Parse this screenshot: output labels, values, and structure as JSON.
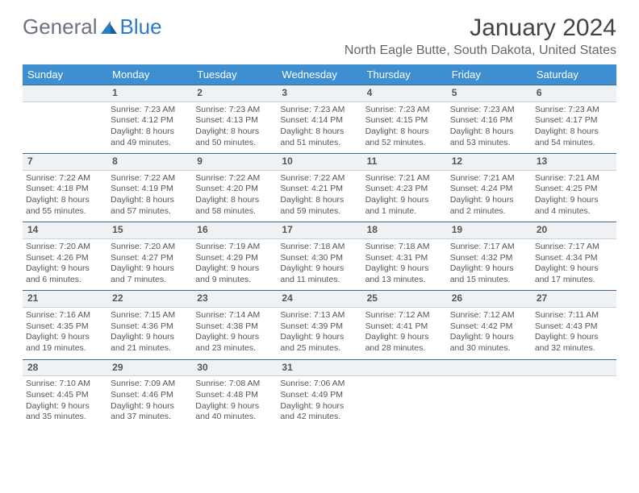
{
  "logo": {
    "text1": "General",
    "text2": "Blue"
  },
  "title": "January 2024",
  "location": "North Eagle Butte, South Dakota, United States",
  "dayHeaders": [
    "Sunday",
    "Monday",
    "Tuesday",
    "Wednesday",
    "Thursday",
    "Friday",
    "Saturday"
  ],
  "colors": {
    "headerBg": "#3d8fd1",
    "headerText": "#ffffff",
    "dayNumBg": "#eef2f5",
    "dayNumBorderTop": "#3d6a90",
    "logoGray": "#6b7280",
    "logoBlue": "#2b7cc4"
  },
  "weeks": [
    {
      "nums": [
        "",
        "1",
        "2",
        "3",
        "4",
        "5",
        "6"
      ],
      "cells": [
        null,
        {
          "sunrise": "Sunrise: 7:23 AM",
          "sunset": "Sunset: 4:12 PM",
          "day1": "Daylight: 8 hours",
          "day2": "and 49 minutes."
        },
        {
          "sunrise": "Sunrise: 7:23 AM",
          "sunset": "Sunset: 4:13 PM",
          "day1": "Daylight: 8 hours",
          "day2": "and 50 minutes."
        },
        {
          "sunrise": "Sunrise: 7:23 AM",
          "sunset": "Sunset: 4:14 PM",
          "day1": "Daylight: 8 hours",
          "day2": "and 51 minutes."
        },
        {
          "sunrise": "Sunrise: 7:23 AM",
          "sunset": "Sunset: 4:15 PM",
          "day1": "Daylight: 8 hours",
          "day2": "and 52 minutes."
        },
        {
          "sunrise": "Sunrise: 7:23 AM",
          "sunset": "Sunset: 4:16 PM",
          "day1": "Daylight: 8 hours",
          "day2": "and 53 minutes."
        },
        {
          "sunrise": "Sunrise: 7:23 AM",
          "sunset": "Sunset: 4:17 PM",
          "day1": "Daylight: 8 hours",
          "day2": "and 54 minutes."
        }
      ]
    },
    {
      "nums": [
        "7",
        "8",
        "9",
        "10",
        "11",
        "12",
        "13"
      ],
      "cells": [
        {
          "sunrise": "Sunrise: 7:22 AM",
          "sunset": "Sunset: 4:18 PM",
          "day1": "Daylight: 8 hours",
          "day2": "and 55 minutes."
        },
        {
          "sunrise": "Sunrise: 7:22 AM",
          "sunset": "Sunset: 4:19 PM",
          "day1": "Daylight: 8 hours",
          "day2": "and 57 minutes."
        },
        {
          "sunrise": "Sunrise: 7:22 AM",
          "sunset": "Sunset: 4:20 PM",
          "day1": "Daylight: 8 hours",
          "day2": "and 58 minutes."
        },
        {
          "sunrise": "Sunrise: 7:22 AM",
          "sunset": "Sunset: 4:21 PM",
          "day1": "Daylight: 8 hours",
          "day2": "and 59 minutes."
        },
        {
          "sunrise": "Sunrise: 7:21 AM",
          "sunset": "Sunset: 4:23 PM",
          "day1": "Daylight: 9 hours",
          "day2": "and 1 minute."
        },
        {
          "sunrise": "Sunrise: 7:21 AM",
          "sunset": "Sunset: 4:24 PM",
          "day1": "Daylight: 9 hours",
          "day2": "and 2 minutes."
        },
        {
          "sunrise": "Sunrise: 7:21 AM",
          "sunset": "Sunset: 4:25 PM",
          "day1": "Daylight: 9 hours",
          "day2": "and 4 minutes."
        }
      ]
    },
    {
      "nums": [
        "14",
        "15",
        "16",
        "17",
        "18",
        "19",
        "20"
      ],
      "cells": [
        {
          "sunrise": "Sunrise: 7:20 AM",
          "sunset": "Sunset: 4:26 PM",
          "day1": "Daylight: 9 hours",
          "day2": "and 6 minutes."
        },
        {
          "sunrise": "Sunrise: 7:20 AM",
          "sunset": "Sunset: 4:27 PM",
          "day1": "Daylight: 9 hours",
          "day2": "and 7 minutes."
        },
        {
          "sunrise": "Sunrise: 7:19 AM",
          "sunset": "Sunset: 4:29 PM",
          "day1": "Daylight: 9 hours",
          "day2": "and 9 minutes."
        },
        {
          "sunrise": "Sunrise: 7:18 AM",
          "sunset": "Sunset: 4:30 PM",
          "day1": "Daylight: 9 hours",
          "day2": "and 11 minutes."
        },
        {
          "sunrise": "Sunrise: 7:18 AM",
          "sunset": "Sunset: 4:31 PM",
          "day1": "Daylight: 9 hours",
          "day2": "and 13 minutes."
        },
        {
          "sunrise": "Sunrise: 7:17 AM",
          "sunset": "Sunset: 4:32 PM",
          "day1": "Daylight: 9 hours",
          "day2": "and 15 minutes."
        },
        {
          "sunrise": "Sunrise: 7:17 AM",
          "sunset": "Sunset: 4:34 PM",
          "day1": "Daylight: 9 hours",
          "day2": "and 17 minutes."
        }
      ]
    },
    {
      "nums": [
        "21",
        "22",
        "23",
        "24",
        "25",
        "26",
        "27"
      ],
      "cells": [
        {
          "sunrise": "Sunrise: 7:16 AM",
          "sunset": "Sunset: 4:35 PM",
          "day1": "Daylight: 9 hours",
          "day2": "and 19 minutes."
        },
        {
          "sunrise": "Sunrise: 7:15 AM",
          "sunset": "Sunset: 4:36 PM",
          "day1": "Daylight: 9 hours",
          "day2": "and 21 minutes."
        },
        {
          "sunrise": "Sunrise: 7:14 AM",
          "sunset": "Sunset: 4:38 PM",
          "day1": "Daylight: 9 hours",
          "day2": "and 23 minutes."
        },
        {
          "sunrise": "Sunrise: 7:13 AM",
          "sunset": "Sunset: 4:39 PM",
          "day1": "Daylight: 9 hours",
          "day2": "and 25 minutes."
        },
        {
          "sunrise": "Sunrise: 7:12 AM",
          "sunset": "Sunset: 4:41 PM",
          "day1": "Daylight: 9 hours",
          "day2": "and 28 minutes."
        },
        {
          "sunrise": "Sunrise: 7:12 AM",
          "sunset": "Sunset: 4:42 PM",
          "day1": "Daylight: 9 hours",
          "day2": "and 30 minutes."
        },
        {
          "sunrise": "Sunrise: 7:11 AM",
          "sunset": "Sunset: 4:43 PM",
          "day1": "Daylight: 9 hours",
          "day2": "and 32 minutes."
        }
      ]
    },
    {
      "nums": [
        "28",
        "29",
        "30",
        "31",
        "",
        "",
        ""
      ],
      "cells": [
        {
          "sunrise": "Sunrise: 7:10 AM",
          "sunset": "Sunset: 4:45 PM",
          "day1": "Daylight: 9 hours",
          "day2": "and 35 minutes."
        },
        {
          "sunrise": "Sunrise: 7:09 AM",
          "sunset": "Sunset: 4:46 PM",
          "day1": "Daylight: 9 hours",
          "day2": "and 37 minutes."
        },
        {
          "sunrise": "Sunrise: 7:08 AM",
          "sunset": "Sunset: 4:48 PM",
          "day1": "Daylight: 9 hours",
          "day2": "and 40 minutes."
        },
        {
          "sunrise": "Sunrise: 7:06 AM",
          "sunset": "Sunset: 4:49 PM",
          "day1": "Daylight: 9 hours",
          "day2": "and 42 minutes."
        },
        null,
        null,
        null
      ]
    }
  ]
}
